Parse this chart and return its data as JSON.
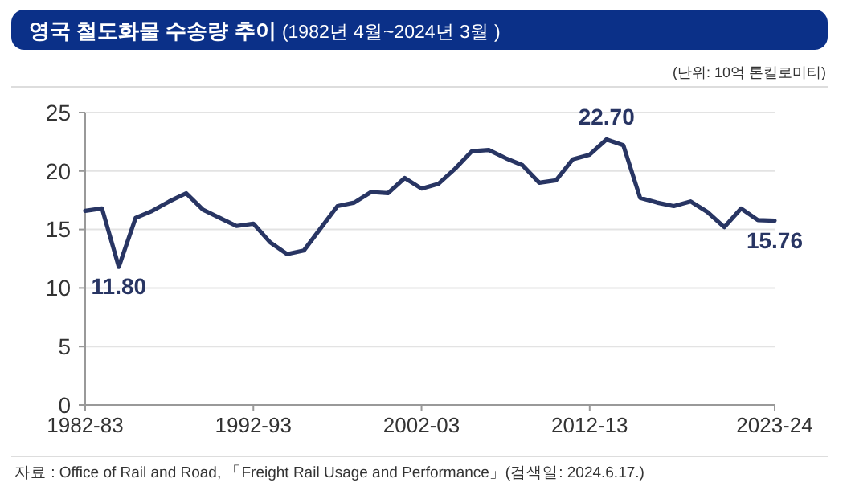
{
  "chart_data": {
    "type": "line",
    "title": "영국 철도화물 수송량 추이 (1982년 4월~2024년 3월 )",
    "subtitle": "(단위:  10억  톤킬로미터)",
    "categories": [
      "1982-83",
      null,
      null,
      null,
      null,
      null,
      null,
      null,
      null,
      null,
      "1992-93",
      null,
      null,
      null,
      null,
      null,
      null,
      null,
      null,
      null,
      "2002-03",
      null,
      null,
      null,
      null,
      null,
      null,
      null,
      null,
      null,
      "2012-13",
      null,
      null,
      null,
      null,
      null,
      null,
      null,
      null,
      null,
      null,
      "2023-24"
    ],
    "series": [
      {
        "color": "#283563",
        "values": [
          16.6,
          16.8,
          11.8,
          16.0,
          16.6,
          17.4,
          18.1,
          16.7,
          16.0,
          15.3,
          15.5,
          13.9,
          12.9,
          13.2,
          15.1,
          17.0,
          17.3,
          18.2,
          18.1,
          19.4,
          18.5,
          18.9,
          20.2,
          21.7,
          21.8,
          21.1,
          20.5,
          19.0,
          19.2,
          21.0,
          21.4,
          22.7,
          22.2,
          17.7,
          17.3,
          17.0,
          17.4,
          16.5,
          15.2,
          16.8,
          15.8,
          15.76
        ],
        "value_labels": [
          null,
          null,
          "11.80",
          null,
          null,
          null,
          null,
          null,
          null,
          null,
          null,
          null,
          null,
          null,
          null,
          null,
          null,
          null,
          null,
          null,
          null,
          null,
          null,
          null,
          null,
          null,
          null,
          null,
          null,
          null,
          null,
          "22.70",
          null,
          null,
          null,
          null,
          null,
          null,
          null,
          null,
          null,
          "15.76"
        ]
      }
    ],
    "ylim": [
      0,
      25
    ],
    "yticks": [
      0,
      5,
      10,
      15,
      20,
      25
    ],
    "grid": "y",
    "marker": "none",
    "line_style": "solid",
    "annotations": [
      "자료 : Office of Rail and Road, 「Freight Rail Usage and Performance」(검색일: 2024.6.17.)"
    ]
  }
}
